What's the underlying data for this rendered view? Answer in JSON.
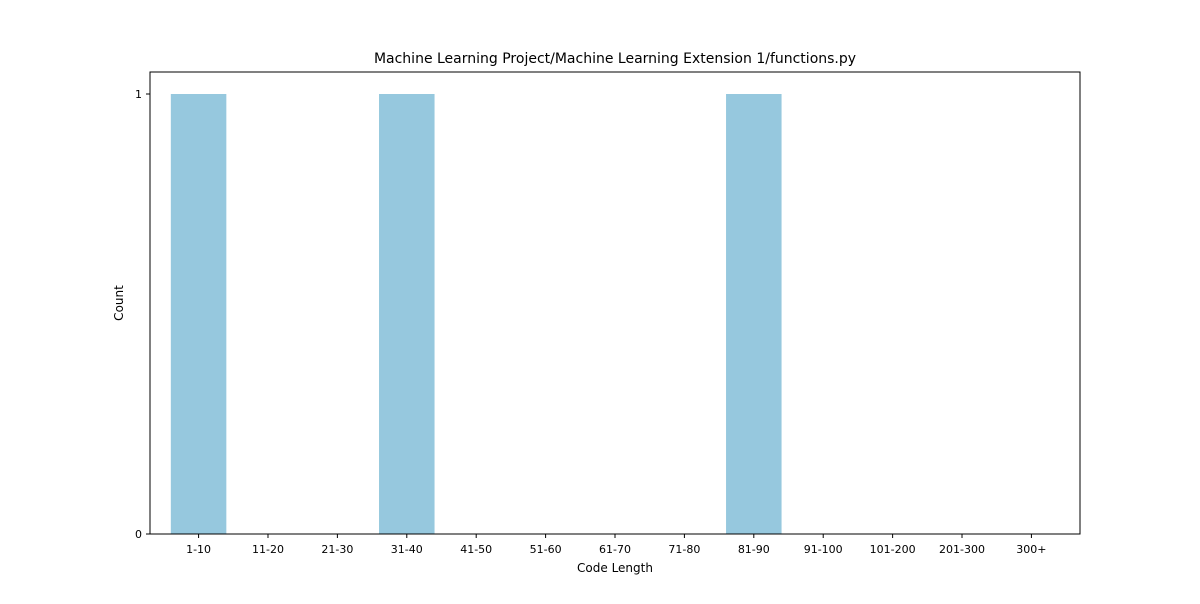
{
  "chart_data": {
    "type": "bar",
    "title": "Machine Learning Project/Machine Learning Extension 1/functions.py",
    "xlabel": "Code Length",
    "ylabel": "Count",
    "categories": [
      "1-10",
      "11-20",
      "21-30",
      "31-40",
      "41-50",
      "51-60",
      "61-70",
      "71-80",
      "81-90",
      "91-100",
      "101-200",
      "201-300",
      "300+"
    ],
    "values": [
      1,
      0,
      0,
      1,
      0,
      0,
      0,
      0,
      1,
      0,
      0,
      0,
      0
    ],
    "ylim": [
      0,
      1.05
    ],
    "yticks": [
      0,
      1
    ],
    "bar_color": "#96c8de",
    "grid": false,
    "legend": "none"
  }
}
